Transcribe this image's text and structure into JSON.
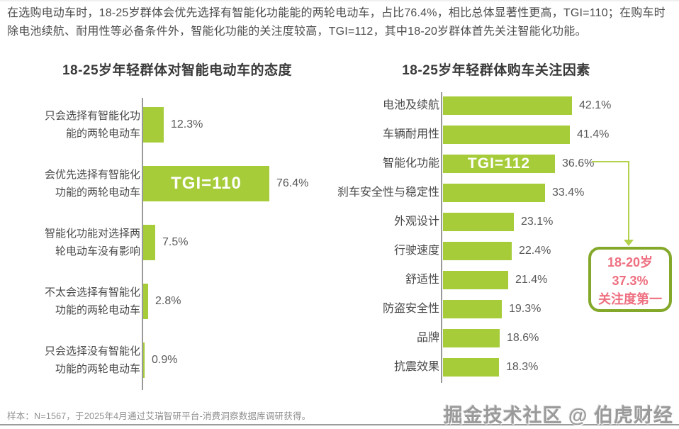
{
  "page": {
    "intro": "在选购电动车时，18-25岁群体会优先选择有智能化功能能的两轮电动车，占比76.4%，相比总体显著性更高，TGI=110；在购车时除电池续航、耐用性等必备条件外，智能化功能的关注度较高，TGI=112，其中18-20岁群体首先关注智能化功能。",
    "footnote": "样本：N=1567，于2025年4月通过艾瑞智研平台-消费洞察数据库调研获得。",
    "watermark": "掘金技术社区 @ 伯虎财经"
  },
  "colors": {
    "bar_green": "#a6cc3a",
    "axis_gray": "#999999",
    "value_text": "#595959",
    "label_text": "#4a4a4a",
    "title_text": "#3a3a3a",
    "tgi_text": "#ffffff",
    "connector_green": "#b3d24c",
    "callout_border": "#84a82a",
    "callout_text": "#ee6f80"
  },
  "chart_data": [
    {
      "type": "bar",
      "orientation": "horizontal",
      "title": "18-25岁年轻群体对智能电动车的态度",
      "value_unit": "%",
      "xlim": [
        0,
        80
      ],
      "grid": false,
      "categories": [
        "只会选择有智能化功\n能的两轮电动车",
        "会优先选择有智能化\n功能的两轮电动车",
        "智能化功能对选择两\n轮电动车没有影响",
        "不太会选择有智能化\n功能的两轮电动车",
        "只会选择没有智能化\n功能的两轮电动车"
      ],
      "values": [
        12.3,
        76.4,
        7.5,
        2.8,
        0.9
      ],
      "value_labels": [
        "12.3%",
        "76.4%",
        "7.5%",
        "2.8%",
        "0.9%"
      ],
      "annotations": [
        {
          "row": 1,
          "text": "TGI=110"
        }
      ]
    },
    {
      "type": "bar",
      "orientation": "horizontal",
      "title": "18-25岁年轻群体购车关注因素",
      "value_unit": "%",
      "xlim": [
        0,
        45
      ],
      "grid": false,
      "categories": [
        "电池及续航",
        "车辆耐用性",
        "智能化功能",
        "刹车安全性与稳定性",
        "外观设计",
        "行驶速度",
        "舒适性",
        "防盗安全性",
        "品牌",
        "抗震效果"
      ],
      "values": [
        42.1,
        41.4,
        36.6,
        33.4,
        23.1,
        22.4,
        21.4,
        19.3,
        18.6,
        18.3
      ],
      "value_labels": [
        "42.1%",
        "41.4%",
        "36.6%",
        "33.4%",
        "23.1%",
        "22.4%",
        "21.4%",
        "19.3%",
        "18.6%",
        "18.3%"
      ],
      "annotations": [
        {
          "row": 2,
          "text": "TGI=112"
        }
      ],
      "callout": {
        "attached_row": 2,
        "lines": [
          "18-20岁",
          "37.3%",
          "关注度第一"
        ]
      }
    }
  ]
}
